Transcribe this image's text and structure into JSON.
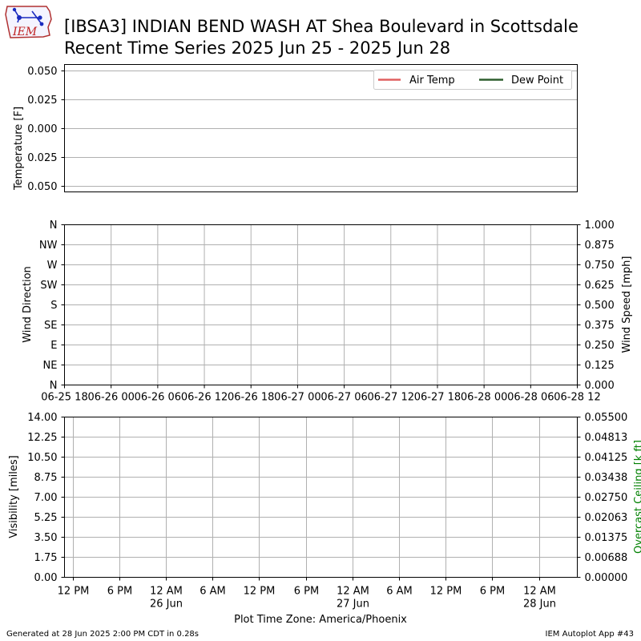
{
  "title": {
    "line1": "[IBSA3] INDIAN BEND WASH  AT Shea Boulevard in Scottsdale",
    "line2": "Recent Time Series 2025 Jun 25 - 2025 Jun 28"
  },
  "logo": {
    "text": "IEM"
  },
  "footer": {
    "left": "Generated at 28 Jun 2025 2:00 PM CDT in 0.28s",
    "right": "IEM Autoplot App #43"
  },
  "colors": {
    "air_temp": "#e06060",
    "dew_point": "#2e5e2e",
    "grid": "#b0b0b0",
    "ceiling_label": "#008000"
  },
  "chart_data": [
    {
      "type": "line",
      "ylabel": "Temperature [F]",
      "ylim": [
        -0.055,
        0.055
      ],
      "yticks": [
        "0.050",
        "0.025",
        "0.000",
        "0.025",
        "0.050"
      ],
      "ytick_values": [
        0.05,
        0.025,
        0.0,
        -0.025,
        -0.05
      ],
      "grid": "horizontal",
      "legend_position": "top-right",
      "series": [
        {
          "name": "Air Temp",
          "values": []
        },
        {
          "name": "Dew Point",
          "values": []
        }
      ]
    },
    {
      "type": "scatter",
      "ylabel_left": "Wind Direction",
      "ylabel_right": "Wind Speed [mph]",
      "yticks_left": [
        "N",
        "NW",
        "W",
        "SW",
        "S",
        "SE",
        "E",
        "NE",
        "N"
      ],
      "yticks_right": [
        "1.000",
        "0.875",
        "0.750",
        "0.625",
        "0.500",
        "0.375",
        "0.250",
        "0.125",
        "0.000"
      ],
      "xticks": [
        "06-25 18",
        "06-26 00",
        "06-26 06",
        "06-26 12",
        "06-26 18",
        "06-27 00",
        "06-27 06",
        "06-27 12",
        "06-27 18",
        "06-28 00",
        "06-28 06",
        "06-28 12"
      ],
      "grid": "both",
      "series": []
    },
    {
      "type": "line",
      "ylabel_left": "Visibility [miles]",
      "ylabel_right": "Overcast Ceiling [k ft]",
      "ylim_left": [
        0,
        14
      ],
      "ylim_right": [
        0,
        0.055
      ],
      "yticks_left": [
        "14.00",
        "12.25",
        "10.50",
        "8.75",
        "7.00",
        "5.25",
        "3.50",
        "1.75",
        "0.00"
      ],
      "yticks_right": [
        "0.05500",
        "0.04813",
        "0.04125",
        "0.03438",
        "0.02750",
        "0.02063",
        "0.01375",
        "0.00688",
        "0.00000"
      ],
      "xticks": [
        {
          "top": "12 PM",
          "bottom": ""
        },
        {
          "top": "6 PM",
          "bottom": ""
        },
        {
          "top": "12 AM",
          "bottom": "26 Jun"
        },
        {
          "top": "6 AM",
          "bottom": ""
        },
        {
          "top": "12 PM",
          "bottom": ""
        },
        {
          "top": "6 PM",
          "bottom": ""
        },
        {
          "top": "12 AM",
          "bottom": "27 Jun"
        },
        {
          "top": "6 AM",
          "bottom": ""
        },
        {
          "top": "12 PM",
          "bottom": ""
        },
        {
          "top": "6 PM",
          "bottom": ""
        },
        {
          "top": "12 AM",
          "bottom": "28 Jun"
        }
      ],
      "xlabel": "Plot Time Zone: America/Phoenix",
      "grid": "both",
      "series": []
    }
  ]
}
